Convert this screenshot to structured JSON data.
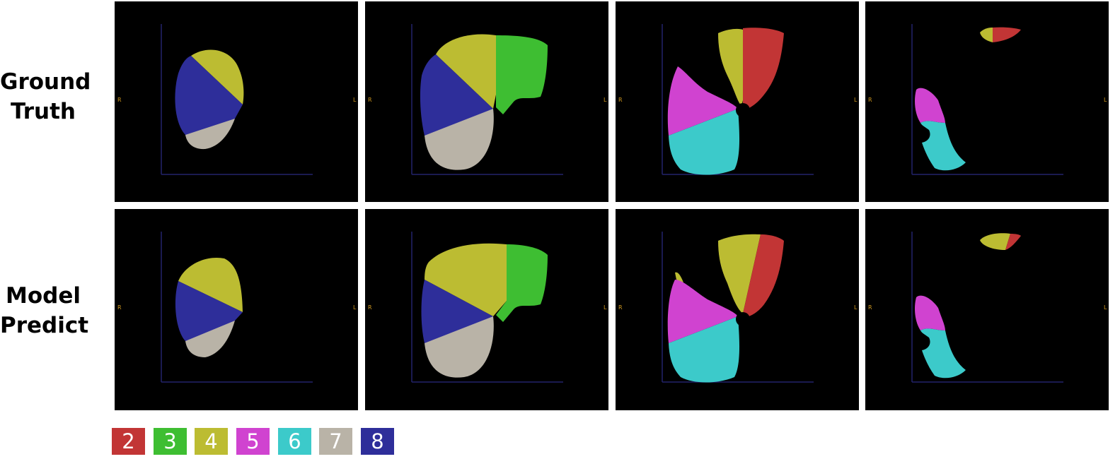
{
  "rows": [
    {
      "label_line1": "Ground",
      "label_line2": "Truth"
    },
    {
      "label_line1": "Model",
      "label_line2": "Predict"
    }
  ],
  "orientation": {
    "right": "R",
    "left": "L"
  },
  "legend": [
    {
      "label": "2",
      "color": "#c23535"
    },
    {
      "label": "3",
      "color": "#3ebe32"
    },
    {
      "label": "4",
      "color": "#bcbc32"
    },
    {
      "label": "5",
      "color": "#d043d0"
    },
    {
      "label": "6",
      "color": "#3ccaca"
    },
    {
      "label": "7",
      "color": "#b9b3a7"
    },
    {
      "label": "8",
      "color": "#2e2e9a"
    }
  ]
}
